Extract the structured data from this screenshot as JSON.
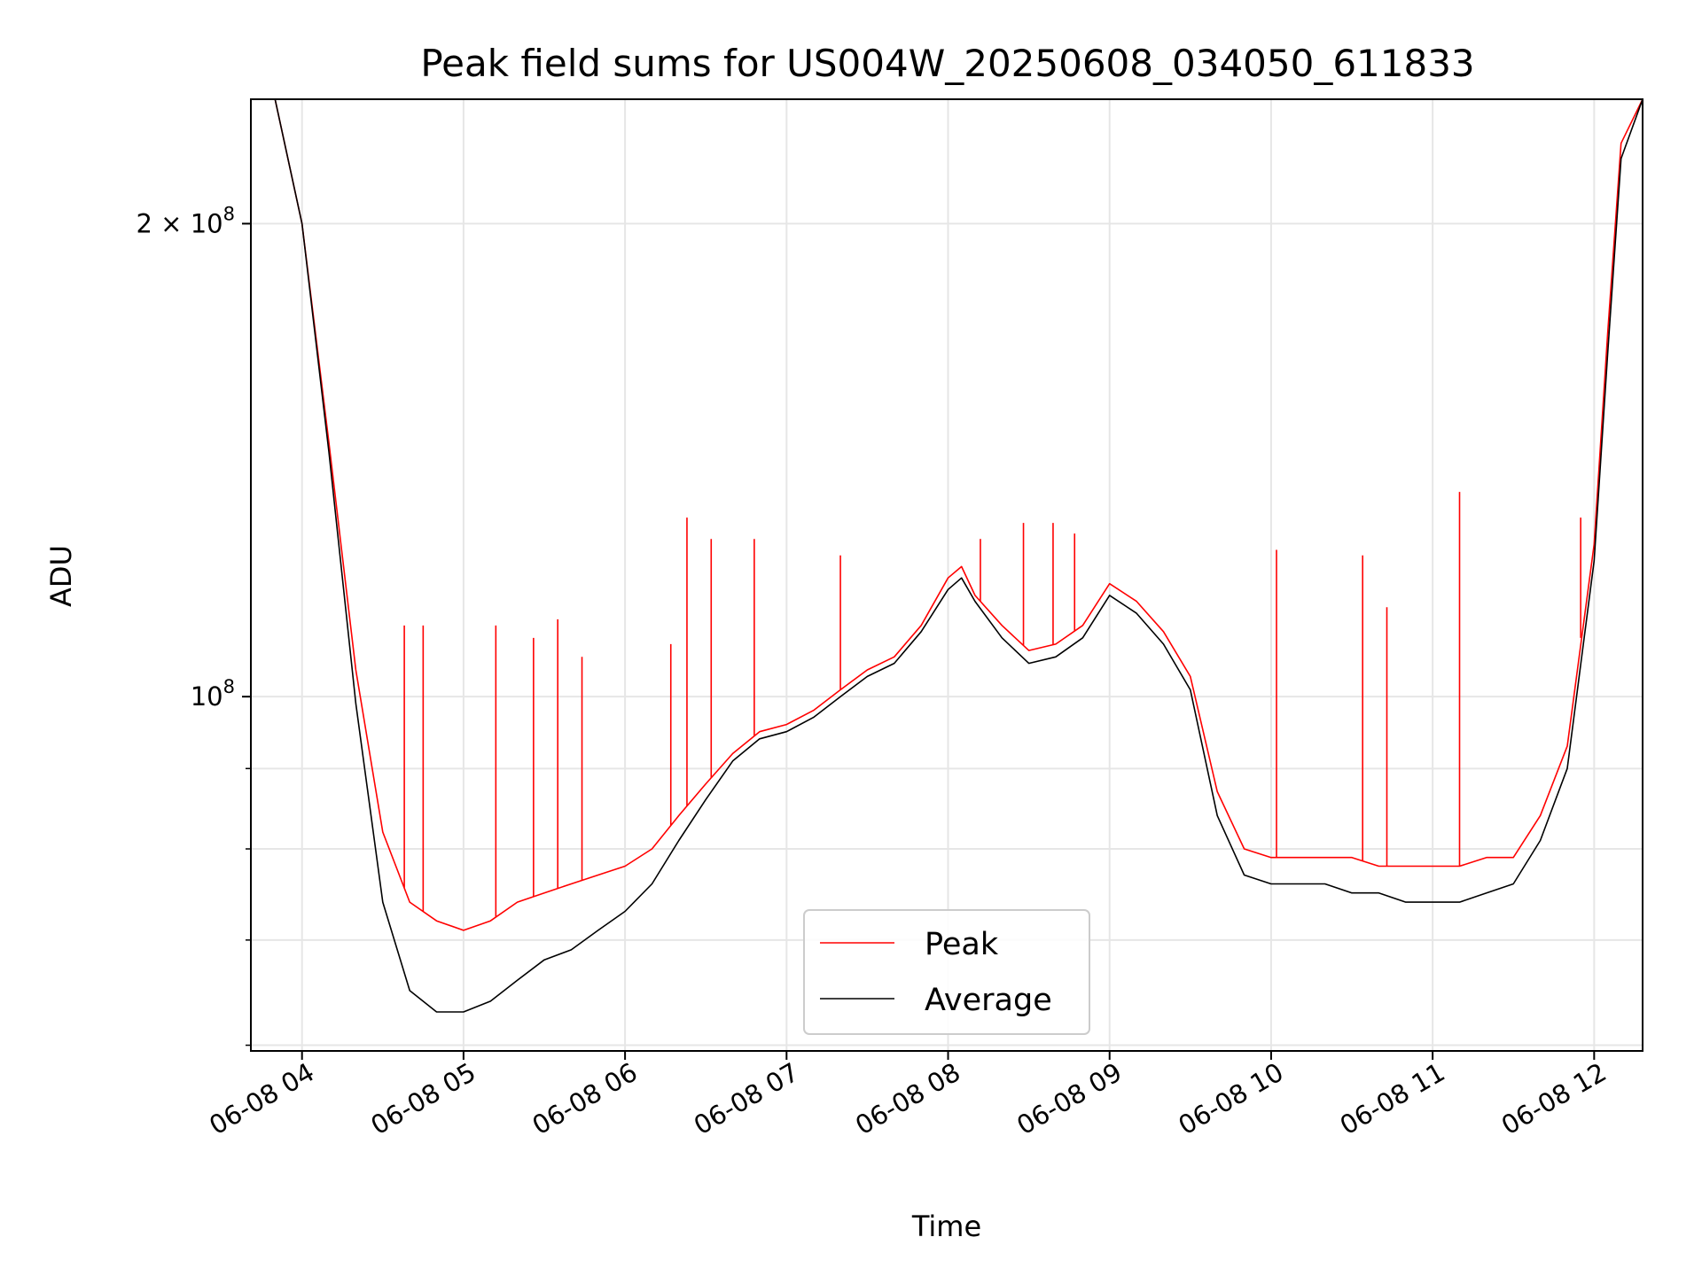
{
  "chart_data": {
    "type": "line",
    "title": "Peak field sums for US004W_20250608_034050_611833",
    "xlabel": "Time",
    "ylabel": "ADU",
    "yscale": "log",
    "grid": true,
    "legend_position": "lower-center",
    "xlim": [
      "06-08 03:41",
      "06-08 12:18"
    ],
    "ylim": [
      59500000,
      240000000
    ],
    "x_ticks": [
      "06-08 04",
      "06-08 05",
      "06-08 06",
      "06-08 07",
      "06-08 08",
      "06-08 09",
      "06-08 10",
      "06-08 11",
      "06-08 12"
    ],
    "y_tick_labels": [
      {
        "value": 100000000,
        "mantissa": "",
        "base": "10",
        "exp": "8"
      },
      {
        "value": 200000000,
        "mantissa": "2",
        "base": "10",
        "exp": "8"
      }
    ],
    "y_minor_ticks": [
      60000000,
      70000000,
      80000000,
      90000000
    ],
    "x": [
      "06-08 03:41",
      "06-08 03:50",
      "06-08 04:00",
      "06-08 04:10",
      "06-08 04:20",
      "06-08 04:30",
      "06-08 04:40",
      "06-08 04:50",
      "06-08 05:00",
      "06-08 05:10",
      "06-08 05:20",
      "06-08 05:30",
      "06-08 05:40",
      "06-08 05:50",
      "06-08 06:00",
      "06-08 06:10",
      "06-08 06:20",
      "06-08 06:30",
      "06-08 06:40",
      "06-08 06:50",
      "06-08 07:00",
      "06-08 07:10",
      "06-08 07:20",
      "06-08 07:30",
      "06-08 07:40",
      "06-08 07:50",
      "06-08 08:00",
      "06-08 08:05",
      "06-08 08:10",
      "06-08 08:20",
      "06-08 08:30",
      "06-08 08:40",
      "06-08 08:50",
      "06-08 09:00",
      "06-08 09:10",
      "06-08 09:20",
      "06-08 09:30",
      "06-08 09:40",
      "06-08 09:50",
      "06-08 10:00",
      "06-08 10:10",
      "06-08 10:20",
      "06-08 10:30",
      "06-08 10:40",
      "06-08 10:50",
      "06-08 11:00",
      "06-08 11:10",
      "06-08 11:20",
      "06-08 11:30",
      "06-08 11:40",
      "06-08 11:50",
      "06-08 12:00",
      "06-08 12:05",
      "06-08 12:10",
      "06-08 12:18"
    ],
    "series": [
      {
        "name": "Peak",
        "color": "#ff0000",
        "values": [
          240000000,
          240000000,
          200000000,
          145000000,
          104000000,
          82000000,
          74000000,
          72000000,
          71000000,
          72000000,
          74000000,
          75000000,
          76000000,
          77000000,
          78000000,
          80000000,
          84000000,
          88000000,
          92000000,
          95000000,
          96000000,
          98000000,
          101000000,
          104000000,
          106000000,
          111000000,
          119000000,
          121000000,
          116000000,
          111000000,
          107000000,
          108000000,
          111000000,
          118000000,
          115000000,
          110000000,
          103000000,
          87000000,
          80000000,
          79000000,
          79000000,
          79000000,
          79000000,
          78000000,
          78000000,
          78000000,
          78000000,
          79000000,
          79000000,
          84000000,
          93000000,
          125000000,
          170000000,
          225000000,
          240000000
        ]
      },
      {
        "name": "Average",
        "color": "#000000",
        "values": [
          240000000,
          240000000,
          200000000,
          143000000,
          99000000,
          74000000,
          65000000,
          63000000,
          63000000,
          64000000,
          66000000,
          68000000,
          69000000,
          71000000,
          73000000,
          76000000,
          81000000,
          86000000,
          91000000,
          94000000,
          95000000,
          97000000,
          100000000,
          103000000,
          105000000,
          110000000,
          117000000,
          119000000,
          115000000,
          109000000,
          105000000,
          106000000,
          109000000,
          116000000,
          113000000,
          108000000,
          101000000,
          84000000,
          77000000,
          76000000,
          76000000,
          76000000,
          75000000,
          75000000,
          74000000,
          74000000,
          74000000,
          75000000,
          76000000,
          81000000,
          90000000,
          122000000,
          165000000,
          220000000,
          240000000
        ]
      }
    ],
    "spikes": {
      "series": "Peak",
      "x": [
        "06-08 04:20",
        "06-08 04:38",
        "06-08 04:45",
        "06-08 05:12",
        "06-08 05:26",
        "06-08 05:35",
        "06-08 05:44",
        "06-08 06:17",
        "06-08 06:23",
        "06-08 06:32",
        "06-08 06:48",
        "06-08 07:20",
        "06-08 08:12",
        "06-08 08:28",
        "06-08 08:39",
        "06-08 08:47",
        "06-08 10:02",
        "06-08 10:34",
        "06-08 10:43",
        "06-08 11:10",
        "06-08 11:55"
      ],
      "values": [
        104000000,
        111000000,
        111000000,
        111000000,
        109000000,
        112000000,
        106000000,
        108000000,
        130000000,
        126000000,
        126000000,
        123000000,
        126000000,
        129000000,
        129000000,
        127000000,
        124000000,
        123000000,
        114000000,
        135000000,
        130000000
      ]
    },
    "legend": [
      {
        "label": "Peak",
        "color": "#ff0000"
      },
      {
        "label": "Average",
        "color": "#000000"
      }
    ]
  }
}
